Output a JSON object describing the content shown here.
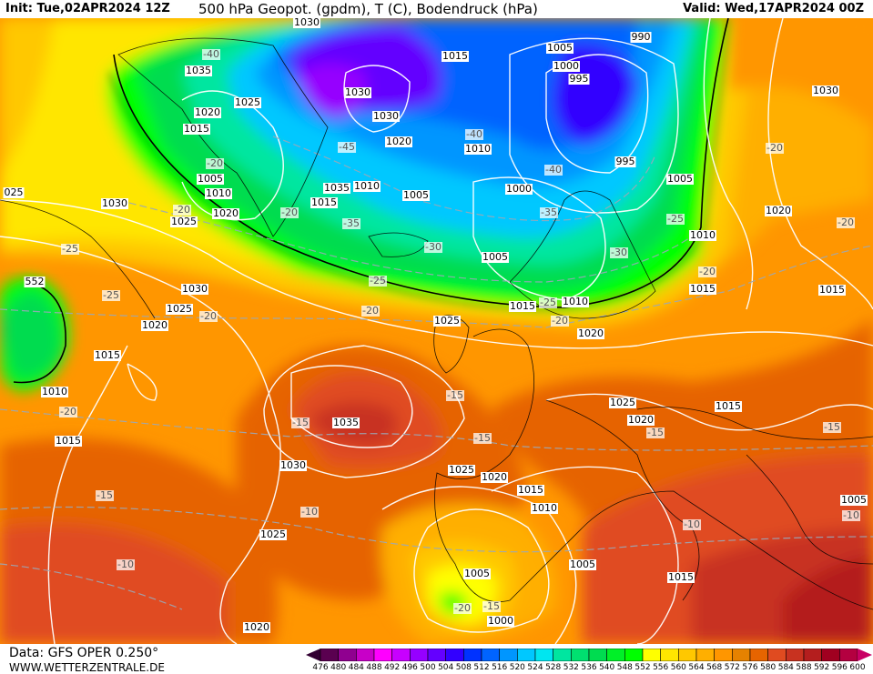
{
  "header": {
    "init": "Init: Tue,02APR2024 12Z",
    "title": "500 hPa Geopot. (gpdm), T (C), Bodendruck (hPa)",
    "valid": "Valid: Wed,17APR2024 00Z"
  },
  "footer": {
    "source": "Data: GFS OPER 0.250°",
    "site": "WWW.WETTERZENTRALE.DE"
  },
  "legend": {
    "ticks": [
      "476",
      "480",
      "484",
      "488",
      "492",
      "496",
      "500",
      "504",
      "508",
      "512",
      "516",
      "520",
      "524",
      "528",
      "532",
      "536",
      "540",
      "548",
      "552",
      "556",
      "560",
      "564",
      "568",
      "572",
      "576",
      "580",
      "584",
      "588",
      "592",
      "596",
      "600"
    ],
    "colors": [
      "#5a0050",
      "#900090",
      "#c800c8",
      "#ff00ff",
      "#c800ff",
      "#9600ff",
      "#6400ff",
      "#3200ff",
      "#0032ff",
      "#0064ff",
      "#0096ff",
      "#00c8ff",
      "#00e6f0",
      "#00e6a0",
      "#00e070",
      "#00dc50",
      "#00f028",
      "#00ff00",
      "#ffff00",
      "#ffe600",
      "#ffc800",
      "#ffaf00",
      "#ff9600",
      "#e68200",
      "#e66400",
      "#e04b20",
      "#c83220",
      "#b41e1e",
      "#a00020",
      "#b40040"
    ],
    "under_color": "#320032",
    "over_color": "#c80064"
  },
  "map": {
    "pressure_labels": [
      "1030",
      "1035",
      "1025",
      "1020",
      "1015",
      "1005",
      "1010",
      "1030",
      "1025",
      "1020",
      "1030",
      "1030",
      "1020",
      "1015",
      "1010",
      "1005",
      "1035",
      "1010",
      "1015",
      "1005",
      "1000",
      "995",
      "990",
      "995",
      "1005",
      "1000",
      "1005",
      "1010",
      "1015",
      "1015",
      "1010",
      "1020",
      "1025",
      "1030",
      "1025",
      "1020",
      "1015",
      "1010",
      "1015",
      "1035",
      "1030",
      "1025",
      "1020",
      "1015",
      "1010",
      "1025",
      "1025",
      "1020",
      "1015",
      "1005",
      "1015",
      "1005",
      "1000",
      "1020",
      "1030",
      "1020",
      "1015",
      "1005",
      "025"
    ],
    "temperature_labels": [
      "-40",
      "-45",
      "-40",
      "-40",
      "-35",
      "-35",
      "-30",
      "-30",
      "-25",
      "-25",
      "-25",
      "-20",
      "-20",
      "-20",
      "-20",
      "-20",
      "-20",
      "-20",
      "-25",
      "-25",
      "-20",
      "-20",
      "-20",
      "-15",
      "-15",
      "-15",
      "-15",
      "-15",
      "-15",
      "-10",
      "-10",
      "-10",
      "-10",
      "-20",
      "-15"
    ],
    "geopotential_labels": [
      "552"
    ]
  }
}
